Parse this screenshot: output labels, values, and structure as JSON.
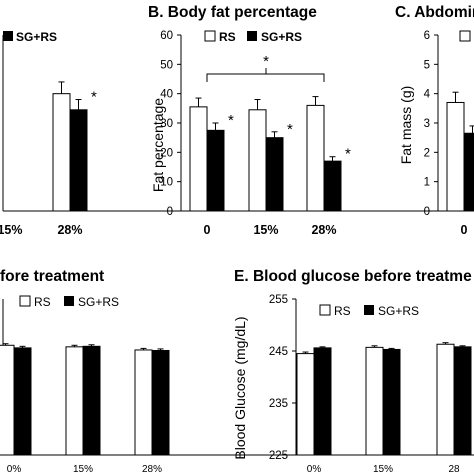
{
  "chart_data": [
    {
      "panel": "A",
      "type": "bar",
      "title": "",
      "categories": [
        "",
        "15%",
        "28%"
      ],
      "series": [
        {
          "name": "RS",
          "values": [
            null,
            40,
            43.5
          ],
          "errors": [
            null,
            4,
            4
          ]
        },
        {
          "name": "SG+RS",
          "values": [
            null,
            34.5,
            32
          ],
          "errors": [
            null,
            3.5,
            3
          ]
        }
      ],
      "significance": [
        "",
        "*",
        "*"
      ],
      "ylim": [
        0,
        60
      ]
    },
    {
      "panel": "B",
      "type": "bar",
      "title": "B. Body fat percentage",
      "ylabel": "Fat percentage",
      "yticks": [
        "0",
        "10",
        "20",
        "30",
        "40",
        "50",
        "60"
      ],
      "ylim": [
        0,
        60
      ],
      "categories": [
        "0",
        "15%",
        "28%"
      ],
      "series": [
        {
          "name": "RS",
          "values": [
            35.5,
            34.5,
            36
          ],
          "errors": [
            3,
            3.5,
            3
          ]
        },
        {
          "name": "SG+RS",
          "values": [
            27.5,
            25,
            17
          ],
          "errors": [
            2.5,
            2,
            1.5
          ]
        }
      ],
      "significance": [
        "*",
        "*",
        "*"
      ],
      "bracket_star": "*"
    },
    {
      "panel": "C",
      "type": "bar",
      "title": "C. Abdomina",
      "ylabel": "Fat mass (g)",
      "yticks": [
        "0",
        "1",
        "2",
        "3",
        "4",
        "5",
        "6"
      ],
      "ylim": [
        0,
        6
      ],
      "categories": [
        "0"
      ],
      "series": [
        {
          "name": "RS",
          "values": [
            3.7
          ],
          "errors": [
            0.35
          ]
        },
        {
          "name": "SG+RS",
          "values": [
            2.65
          ],
          "errors": [
            0.25
          ]
        }
      ],
      "significance": [
        "*"
      ]
    },
    {
      "panel": "D",
      "type": "bar",
      "title": "fore treatment",
      "categories": [
        "0%",
        "15%",
        "28%"
      ],
      "series": [
        {
          "name": "RS",
          "values": [
            246.1,
            245.8,
            245.2
          ],
          "errors": [
            0.3,
            0.3,
            0.3
          ]
        },
        {
          "name": "SG+RS",
          "values": [
            245.6,
            245.9,
            245.1
          ],
          "errors": [
            0.3,
            0.3,
            0.3
          ]
        }
      ],
      "ylim": [
        225,
        255
      ]
    },
    {
      "panel": "E",
      "type": "bar",
      "title": "E. Blood glucose before treatme",
      "ylabel": "Blood Glucose  (mg/dL)",
      "yticks": [
        "225",
        "235",
        "245",
        "255"
      ],
      "ylim": [
        225,
        255
      ],
      "categories": [
        "0%",
        "15%",
        "28"
      ],
      "series": [
        {
          "name": "RS",
          "values": [
            244.5,
            245.7,
            246.3
          ],
          "errors": [
            0.3,
            0.3,
            0.3
          ]
        },
        {
          "name": "SG+RS",
          "values": [
            245.6,
            245.3,
            245.8
          ],
          "errors": [
            0.2,
            0.2,
            0.2
          ]
        }
      ]
    }
  ]
}
